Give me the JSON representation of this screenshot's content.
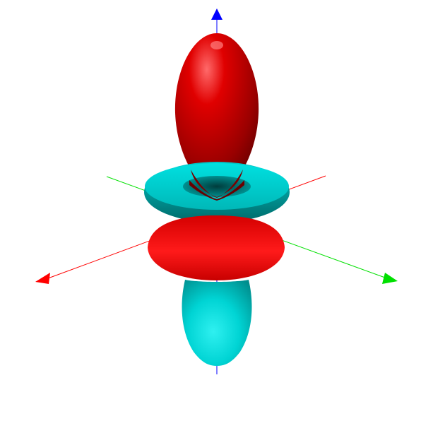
{
  "scene": {
    "background": "#ffffff",
    "colors": {
      "positive_lobe": "#e00000",
      "negative_lobe": "#00d2d2",
      "axis_x": "#ff0000",
      "axis_y": "#00e000",
      "axis_z": "#0000ff"
    },
    "axes": [
      "x-axis",
      "y-axis",
      "z-axis"
    ],
    "lobes": [
      "upper-red-lobe",
      "cyan-torus-ring",
      "red-torus-disc",
      "lower-cyan-lobe"
    ]
  }
}
